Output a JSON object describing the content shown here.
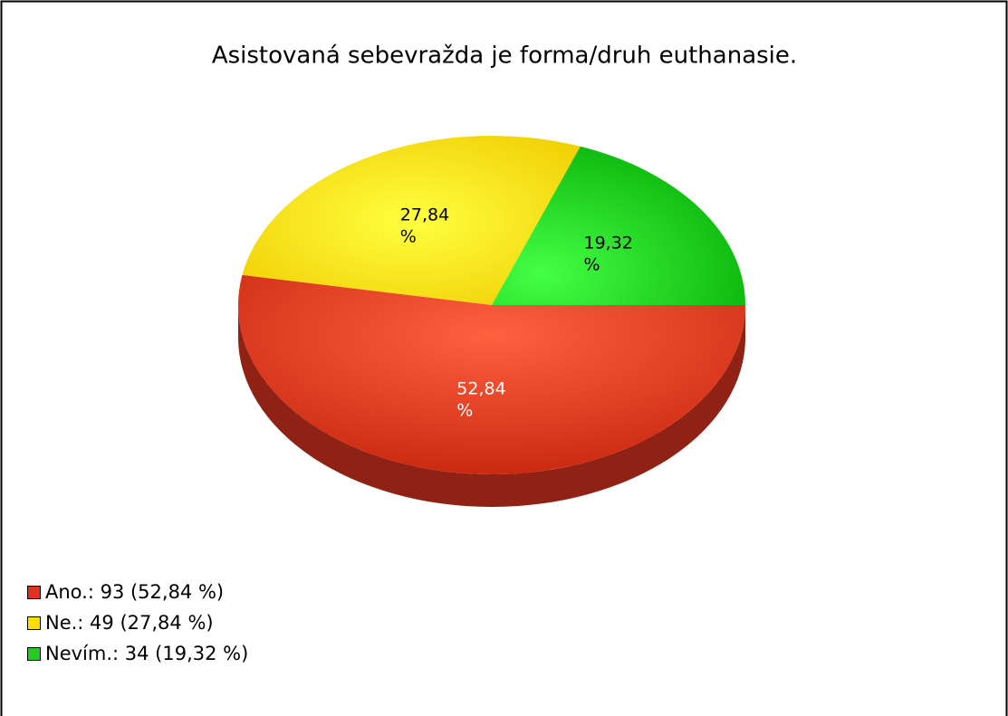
{
  "chart_data": {
    "type": "pie",
    "title": "Asistovaná sebevražda je forma/druh euthanasie.",
    "categories": [
      "Ano.",
      "Ne.",
      "Nevím."
    ],
    "values": [
      52.84,
      27.84,
      19.32
    ],
    "value_labels": [
      "52,84 %",
      "27,84 %",
      "19,32 %"
    ],
    "legend_labels": [
      "Ano.: 93 (52,84 %)",
      "Ne.: 49 (27,84 %)",
      "Nevím.: 34 (19,32 %)"
    ],
    "colors": [
      "#dd3320",
      "#ffdd00",
      "#22cc22"
    ]
  }
}
